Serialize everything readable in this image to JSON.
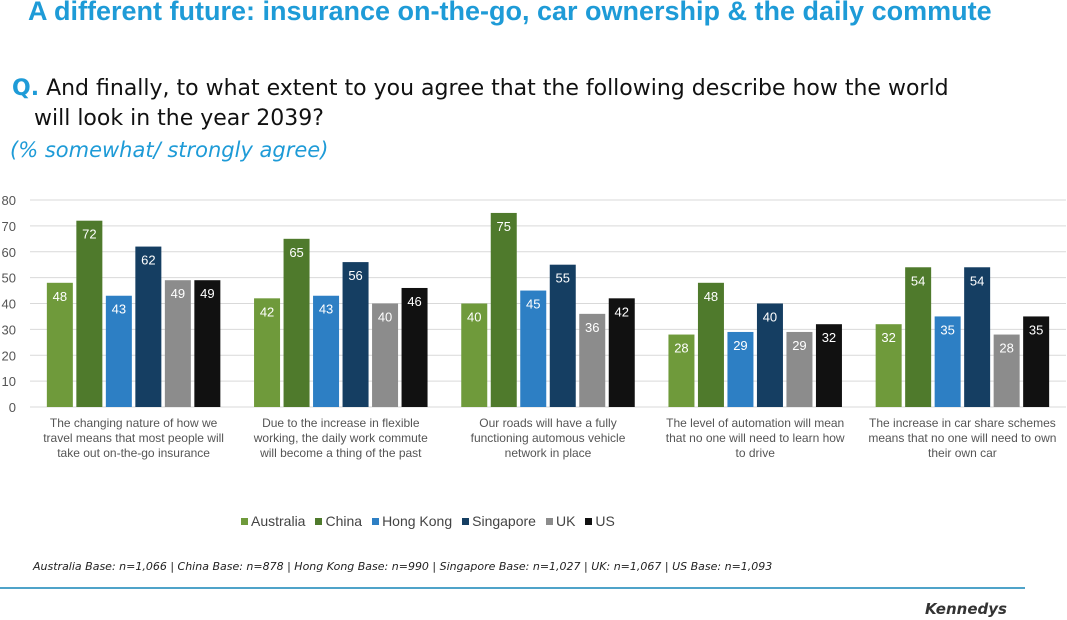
{
  "header": {
    "title": "A different future: insurance on-the-go, car ownership & the daily commute",
    "question_marker": "Q.",
    "question_line1": "And finally, to what extent to you agree that the following describe how the world",
    "question_line2": "will look in the year 2039?",
    "subtitle": "(% somewhat/ strongly agree)"
  },
  "chart_data": {
    "type": "bar",
    "ylim": [
      0,
      80
    ],
    "yticks": [
      "0",
      "10",
      "20",
      "30",
      "40",
      "50",
      "60",
      "70",
      "80"
    ],
    "grid": true,
    "legend_position": "bottom",
    "categories": [
      [
        "The changing nature of how we",
        "travel means that most people will",
        "take out on-the-go insurance"
      ],
      [
        "Due to the increase in flexible",
        "working, the daily work commute",
        "will become a thing of the past"
      ],
      [
        "Our roads will have a fully",
        "functioning automous vehicle",
        "network in place"
      ],
      [
        "The level of automation will mean",
        "that no one will need to learn how",
        "to drive"
      ],
      [
        "The increase in car share schemes",
        "means that no one will need to own",
        "their own car"
      ]
    ],
    "series": [
      {
        "name": "Australia",
        "color": "#6f9a3b",
        "values": [
          48,
          42,
          40,
          28,
          32
        ]
      },
      {
        "name": "China",
        "color": "#4f7a2c",
        "values": [
          72,
          65,
          75,
          48,
          54
        ]
      },
      {
        "name": "Hong Kong",
        "color": "#2d7fc4",
        "values": [
          43,
          43,
          45,
          29,
          35
        ]
      },
      {
        "name": "Singapore",
        "color": "#153e62",
        "values": [
          62,
          56,
          55,
          40,
          54
        ]
      },
      {
        "name": "UK",
        "color": "#8c8c8c",
        "values": [
          49,
          40,
          36,
          29,
          28
        ]
      },
      {
        "name": "US",
        "color": "#111111",
        "values": [
          49,
          46,
          42,
          32,
          35
        ]
      }
    ]
  },
  "footer": {
    "base_note": "Australia Base: n=1,066 | China Base: n=878 | Hong Kong Base: n=990 | Singapore Base: n=1,027 | UK: n=1,067 | US Base: n=1,093",
    "brand": "Kennedys"
  }
}
